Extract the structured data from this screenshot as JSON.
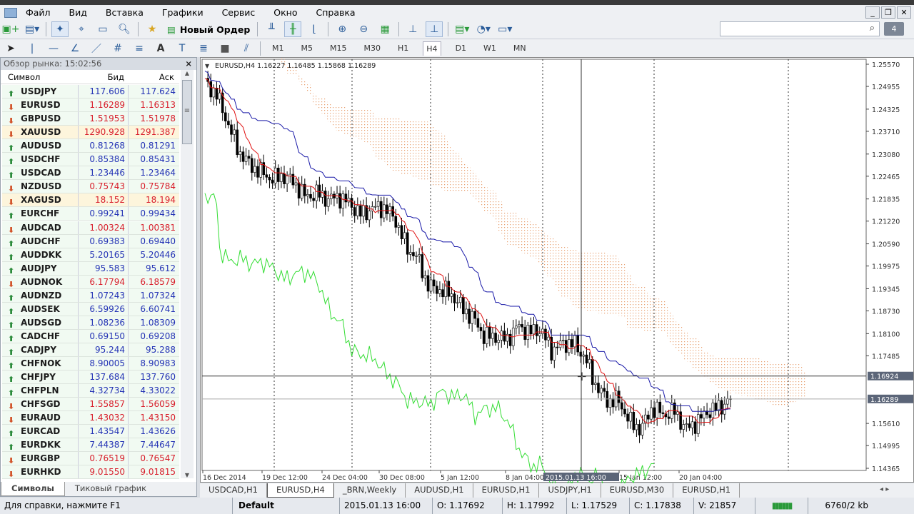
{
  "menu": [
    "Файл",
    "Вид",
    "Вставка",
    "Графики",
    "Сервис",
    "Окно",
    "Справка"
  ],
  "toolbar": {
    "new_order": "Новый Ордер",
    "timeframes": [
      "M1",
      "M5",
      "M15",
      "M30",
      "H1",
      "H4",
      "D1",
      "W1",
      "MN"
    ],
    "active_tf": "H4",
    "messages_count": "4"
  },
  "market_watch": {
    "title": "Обзор рынка: 15:02:56",
    "headers": [
      "Символ",
      "Бид",
      "Аск"
    ],
    "rows": [
      [
        "USDJPY",
        "117.606",
        "117.624",
        "up"
      ],
      [
        "EURUSD",
        "1.16289",
        "1.16313",
        "down"
      ],
      [
        "GBPUSD",
        "1.51953",
        "1.51978",
        "down"
      ],
      [
        "XAUUSD",
        "1290.928",
        "1291.387",
        "down"
      ],
      [
        "AUDUSD",
        "0.81268",
        "0.81291",
        "up"
      ],
      [
        "USDCHF",
        "0.85384",
        "0.85431",
        "up"
      ],
      [
        "USDCAD",
        "1.23446",
        "1.23464",
        "up"
      ],
      [
        "NZDUSD",
        "0.75743",
        "0.75784",
        "down"
      ],
      [
        "XAGUSD",
        "18.152",
        "18.194",
        "down"
      ],
      [
        "EURCHF",
        "0.99241",
        "0.99434",
        "up"
      ],
      [
        "AUDCAD",
        "1.00324",
        "1.00381",
        "down"
      ],
      [
        "AUDCHF",
        "0.69383",
        "0.69440",
        "up"
      ],
      [
        "AUDDKK",
        "5.20165",
        "5.20446",
        "up"
      ],
      [
        "AUDJPY",
        "95.583",
        "95.612",
        "up"
      ],
      [
        "AUDNOK",
        "6.17794",
        "6.18579",
        "down"
      ],
      [
        "AUDNZD",
        "1.07243",
        "1.07324",
        "up"
      ],
      [
        "AUDSEK",
        "6.59926",
        "6.60741",
        "up"
      ],
      [
        "AUDSGD",
        "1.08236",
        "1.08309",
        "up"
      ],
      [
        "CADCHF",
        "0.69150",
        "0.69208",
        "up"
      ],
      [
        "CADJPY",
        "95.244",
        "95.288",
        "up"
      ],
      [
        "CHFNOK",
        "8.90005",
        "8.90983",
        "up"
      ],
      [
        "CHFJPY",
        "137.684",
        "137.760",
        "up"
      ],
      [
        "CHFPLN",
        "4.32734",
        "4.33022",
        "up"
      ],
      [
        "CHFSGD",
        "1.55857",
        "1.56059",
        "down"
      ],
      [
        "EURAUD",
        "1.43032",
        "1.43150",
        "down"
      ],
      [
        "EURCAD",
        "1.43547",
        "1.43626",
        "up"
      ],
      [
        "EURDKK",
        "7.44387",
        "7.44647",
        "up"
      ],
      [
        "EURGBP",
        "0.76519",
        "0.76547",
        "down"
      ],
      [
        "EURHKD",
        "9.01550",
        "9.01815",
        "down"
      ]
    ],
    "tabs": [
      "Символы",
      "Тиковый график"
    ]
  },
  "chart": {
    "header": "EURUSD,H4  1.16227 1.16485 1.15868 1.16289",
    "price_ticks": [
      "1.25570",
      "1.24955",
      "1.24325",
      "1.23710",
      "1.23080",
      "1.22465",
      "1.21835",
      "1.21220",
      "1.20590",
      "1.19975",
      "1.19345",
      "1.18730",
      "1.18100",
      "1.17485",
      "1.15610",
      "1.14995",
      "1.14365"
    ],
    "crosshair_price": "1.16924",
    "bid_price": "1.16289",
    "crosshair_time": "2015.01.13 16:00",
    "time_ticks": [
      "16 Dec 2014",
      "19 Dec 12:00",
      "24 Dec 04:00",
      "30 Dec 08:00",
      "5 Jan 12:00",
      "8 Jan 04:00",
      "15 Jan 12:00",
      "20 Jan 04:00"
    ],
    "closes": [
      1.2506,
      1.2476,
      1.2397,
      1.2317,
      1.2278,
      1.2258,
      1.2238,
      1.2248,
      1.2228,
      1.2189,
      1.2199,
      1.2183,
      1.2189,
      1.2169,
      1.2139,
      1.2159,
      1.2159,
      1.2129,
      1.205,
      1.202,
      1.1941,
      1.1931,
      1.1921,
      1.1881,
      1.1852,
      1.1802,
      1.1802,
      1.1793,
      1.1832,
      1.1813,
      1.1822,
      1.1763,
      1.1783,
      1.1783,
      1.1743,
      1.1664,
      1.1624,
      1.1624,
      1.1565,
      1.1545,
      1.1605,
      1.1585,
      1.1595,
      1.1545,
      1.1565,
      1.1595,
      1.1605,
      1.1629
    ],
    "colors": {
      "tenkan": "#e01010",
      "kijun": "#1a1aa8",
      "chikou": "#33dd33",
      "cloud": "#e8a070",
      "candle": "#000000"
    }
  },
  "chart_tabs": [
    "USDCAD,H1",
    "EURUSD,H4",
    "_BRN,Weekly",
    "AUDUSD,H1",
    "EURUSD,H1",
    "USDJPY,H1",
    "EURUSD,M30",
    "EURUSD,H1"
  ],
  "active_chart_tab": "EURUSD,H4",
  "status": {
    "help": "Для справки, нажмите F1",
    "profile": "Default",
    "time": "2015.01.13 16:00",
    "open": "O: 1.17692",
    "high": "H: 1.17992",
    "low": "L: 1.17529",
    "close": "C: 1.17838",
    "volume": "V: 21857",
    "traffic": "6760/2 kb"
  }
}
